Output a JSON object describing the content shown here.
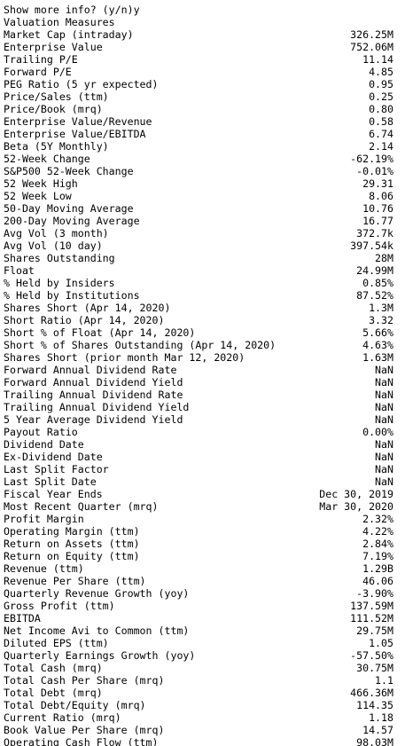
{
  "prompt": "Show more info? (y/n)y",
  "section_title": "Valuation Measures",
  "rows": [
    {
      "label": "Market Cap (intraday)",
      "value": "326.25M"
    },
    {
      "label": "Enterprise Value",
      "value": "752.06M"
    },
    {
      "label": "Trailing P/E",
      "value": "11.14"
    },
    {
      "label": "Forward P/E",
      "value": "4.85"
    },
    {
      "label": "PEG Ratio (5 yr expected)",
      "value": "0.95"
    },
    {
      "label": "Price/Sales (ttm)",
      "value": "0.25"
    },
    {
      "label": "Price/Book (mrq)",
      "value": "0.80"
    },
    {
      "label": "Enterprise Value/Revenue",
      "value": "0.58"
    },
    {
      "label": "Enterprise Value/EBITDA",
      "value": "6.74"
    },
    {
      "label": "Beta (5Y Monthly)",
      "value": "2.14"
    },
    {
      "label": "52-Week Change",
      "value": "-62.19%"
    },
    {
      "label": "S&P500 52-Week Change",
      "value": "-0.01%"
    },
    {
      "label": "52 Week High",
      "value": "29.31"
    },
    {
      "label": "52 Week Low",
      "value": "8.06"
    },
    {
      "label": "50-Day Moving Average",
      "value": "10.76"
    },
    {
      "label": "200-Day Moving Average",
      "value": "16.77"
    },
    {
      "label": "Avg Vol (3 month)",
      "value": "372.7k"
    },
    {
      "label": "Avg Vol (10 day)",
      "value": "397.54k"
    },
    {
      "label": "Shares Outstanding",
      "value": "28M"
    },
    {
      "label": "Float",
      "value": "24.99M"
    },
    {
      "label": "% Held by Insiders",
      "value": "0.85%"
    },
    {
      "label": "% Held by Institutions",
      "value": "87.52%"
    },
    {
      "label": "Shares Short (Apr 14, 2020)",
      "value": "1.3M"
    },
    {
      "label": "Short Ratio (Apr 14, 2020)",
      "value": "3.32"
    },
    {
      "label": "Short % of Float (Apr 14, 2020)",
      "value": "5.66%"
    },
    {
      "label": "Short % of Shares Outstanding (Apr 14, 2020)",
      "value": "4.63%"
    },
    {
      "label": "Shares Short (prior month Mar 12, 2020)",
      "value": "1.63M"
    },
    {
      "label": "Forward Annual Dividend Rate",
      "value": "NaN"
    },
    {
      "label": "Forward Annual Dividend Yield",
      "value": "NaN"
    },
    {
      "label": "Trailing Annual Dividend Rate",
      "value": "NaN"
    },
    {
      "label": "Trailing Annual Dividend Yield",
      "value": "NaN"
    },
    {
      "label": "5 Year Average Dividend Yield",
      "value": "NaN"
    },
    {
      "label": "Payout Ratio",
      "value": "0.00%"
    },
    {
      "label": "Dividend Date",
      "value": "NaN"
    },
    {
      "label": "Ex-Dividend Date",
      "value": "NaN"
    },
    {
      "label": "Last Split Factor",
      "value": "NaN"
    },
    {
      "label": "Last Split Date",
      "value": "NaN"
    },
    {
      "label": "Fiscal Year Ends",
      "value": "Dec 30, 2019"
    },
    {
      "label": "Most Recent Quarter (mrq)",
      "value": "Mar 30, 2020"
    },
    {
      "label": "Profit Margin",
      "value": "2.32%"
    },
    {
      "label": "Operating Margin (ttm)",
      "value": "4.22%"
    },
    {
      "label": "Return on Assets (ttm)",
      "value": "2.84%"
    },
    {
      "label": "Return on Equity (ttm)",
      "value": "7.19%"
    },
    {
      "label": "Revenue (ttm)",
      "value": "1.29B"
    },
    {
      "label": "Revenue Per Share (ttm)",
      "value": "46.06"
    },
    {
      "label": "Quarterly Revenue Growth (yoy)",
      "value": "-3.90%"
    },
    {
      "label": "Gross Profit (ttm)",
      "value": "137.59M"
    },
    {
      "label": "EBITDA",
      "value": "111.52M"
    },
    {
      "label": "Net Income Avi to Common (ttm)",
      "value": "29.75M"
    },
    {
      "label": "Diluted EPS (ttm)",
      "value": "1.05"
    },
    {
      "label": "Quarterly Earnings Growth (yoy)",
      "value": "-57.50%"
    },
    {
      "label": "Total Cash (mrq)",
      "value": "30.75M"
    },
    {
      "label": "Total Cash Per Share (mrq)",
      "value": "1.1"
    },
    {
      "label": "Total Debt (mrq)",
      "value": "466.36M"
    },
    {
      "label": "Total Debt/Equity (mrq)",
      "value": "114.35"
    },
    {
      "label": "Current Ratio (mrq)",
      "value": "1.18"
    },
    {
      "label": "Book Value Per Share (mrq)",
      "value": "14.57"
    },
    {
      "label": "Operating Cash Flow (ttm)",
      "value": "98.03M"
    }
  ]
}
